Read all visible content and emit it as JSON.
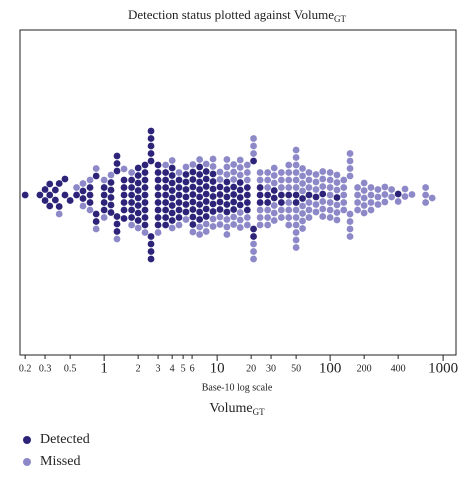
{
  "chart_data": {
    "type": "beeswarm",
    "title": "Detection status plotted against Volume",
    "title_subscript": "GT",
    "x_note": "Base-10 log scale",
    "x_label": "Volume",
    "x_label_subscript": "GT",
    "xscale": "log",
    "xlim": [
      0.18,
      1300
    ],
    "xticks": [
      0.2,
      0.3,
      0.5,
      1,
      2,
      3,
      4,
      5,
      6,
      10,
      20,
      30,
      50,
      100,
      200,
      400,
      1000
    ],
    "series": [
      {
        "name": "Detected",
        "color": "#2d2479",
        "values": [
          0.2,
          0.27,
          0.3,
          0.3,
          0.33,
          0.33,
          0.33,
          0.37,
          0.37,
          0.4,
          0.4,
          0.45,
          0.45,
          0.5,
          0.57,
          0.65,
          0.65,
          0.75,
          0.75,
          0.75,
          0.85,
          0.85,
          0.85,
          1,
          1,
          1,
          1,
          1.15,
          1.15,
          1.15,
          1.15,
          1.15,
          1.3,
          1.3,
          1.3,
          1.3,
          1.3,
          1.3,
          1.5,
          1.5,
          1.5,
          1.5,
          1.5,
          1.5,
          1.75,
          1.75,
          1.75,
          1.75,
          1.75,
          1.75,
          2,
          2,
          2,
          2,
          2,
          2,
          2,
          2,
          2.3,
          2.3,
          2.3,
          2.3,
          2.3,
          2.3,
          2.3,
          2.3,
          2.3,
          2.6,
          2.6,
          2.6,
          2.6,
          2.6,
          2.6,
          2.6,
          2.6,
          2.6,
          3,
          3,
          3,
          3,
          3,
          3,
          3,
          3,
          3,
          3.5,
          3.5,
          3.5,
          3.5,
          3.5,
          3.5,
          3.5,
          3.5,
          4,
          4,
          4,
          4,
          4,
          4,
          4,
          4,
          4.6,
          4.6,
          4.6,
          4.6,
          4.6,
          4.6,
          5.3,
          5.3,
          5.3,
          5.3,
          5.3,
          5.3,
          6.1,
          6.1,
          6.1,
          6.1,
          6.1,
          6.1,
          6.1,
          6.1,
          7,
          7,
          7,
          7,
          7,
          7,
          7,
          7,
          8,
          8,
          8,
          8,
          8,
          8,
          8,
          9.2,
          9.2,
          9.2,
          9.2,
          9.2,
          9.2,
          10.6,
          10.6,
          10.6,
          10.6,
          12.2,
          12.2,
          12.2,
          12.2,
          12.2,
          14,
          14,
          14,
          14,
          16,
          16,
          16,
          16,
          18.5,
          18.5,
          18.5,
          18.5,
          21,
          21,
          21,
          24,
          24,
          24,
          28,
          28,
          32,
          32,
          37,
          37,
          43,
          50,
          50,
          57,
          65,
          75,
          86,
          115,
          400
        ]
      },
      {
        "name": "Missed",
        "color": "#8d89c8",
        "values": [
          0.4,
          0.57,
          0.65,
          0.65,
          0.75,
          0.75,
          0.85,
          0.85,
          1,
          1,
          1.15,
          1.3,
          1.5,
          1.75,
          1.75,
          2,
          2.3,
          3,
          3.5,
          4,
          4,
          4.6,
          4.6,
          5.3,
          5.3,
          6.1,
          6.1,
          7,
          7,
          7,
          8,
          8,
          8,
          9.2,
          9.2,
          9.2,
          9.2,
          10.6,
          10.6,
          10.6,
          10.6,
          12.2,
          12.2,
          12.2,
          12.2,
          12.2,
          12.2,
          14,
          14,
          14,
          14,
          14,
          16,
          16,
          16,
          16,
          16,
          16,
          18.5,
          18.5,
          18.5,
          18.5,
          18.5,
          21,
          21,
          21,
          21,
          21,
          21,
          24,
          24,
          24,
          24,
          24,
          28,
          28,
          28,
          28,
          28,
          28,
          32,
          32,
          32,
          32,
          32,
          32,
          37,
          37,
          37,
          37,
          37,
          43,
          43,
          43,
          43,
          43,
          43,
          43,
          43,
          50,
          50,
          50,
          50,
          50,
          50,
          50,
          50,
          50,
          50,
          50,
          50,
          57,
          57,
          57,
          57,
          57,
          57,
          57,
          57,
          65,
          65,
          65,
          65,
          65,
          65,
          75,
          75,
          75,
          75,
          75,
          86,
          86,
          86,
          86,
          86,
          86,
          100,
          100,
          100,
          100,
          100,
          100,
          100,
          115,
          115,
          115,
          115,
          115,
          115,
          132,
          132,
          132,
          132,
          132,
          150,
          150,
          150,
          150,
          150,
          150,
          150,
          150,
          175,
          175,
          175,
          175,
          200,
          200,
          200,
          200,
          200,
          230,
          230,
          230,
          230,
          265,
          265,
          265,
          305,
          305,
          305,
          350,
          350,
          400,
          460,
          460,
          530,
          700,
          700,
          700,
          800
        ]
      }
    ]
  }
}
